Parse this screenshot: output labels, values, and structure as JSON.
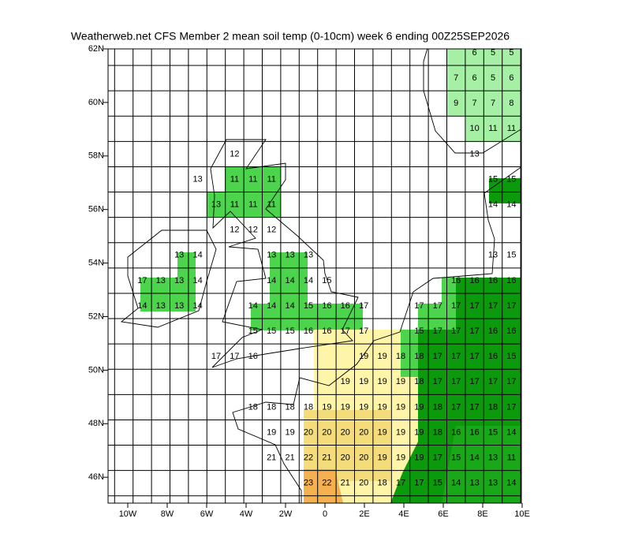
{
  "title": "Weatherweb.net CFS Member 2 mean soil temp (0-10cm) week 6 ending 00Z25SEP2026",
  "x_axis_labels": [
    "10W",
    "8W",
    "6W",
    "4W",
    "2W",
    "0",
    "2E",
    "4E",
    "6E",
    "8E",
    "10E"
  ],
  "y_axis_labels": [
    "62N",
    "60N",
    "58N",
    "56N",
    "54N",
    "52N",
    "50N",
    "48N",
    "46N"
  ],
  "grid_values": [
    [
      null,
      null,
      null,
      null,
      null,
      null,
      null,
      null,
      null,
      null,
      null,
      null,
      null,
      null,
      null,
      null,
      null,
      null,
      null,
      6,
      5,
      5
    ],
    [
      null,
      null,
      null,
      null,
      null,
      null,
      null,
      null,
      null,
      null,
      null,
      null,
      null,
      null,
      null,
      null,
      null,
      null,
      7,
      6,
      5,
      6
    ],
    [
      null,
      null,
      null,
      null,
      null,
      null,
      null,
      null,
      null,
      null,
      null,
      null,
      null,
      null,
      null,
      null,
      null,
      null,
      9,
      7,
      7,
      8
    ],
    [
      null,
      null,
      null,
      null,
      null,
      null,
      null,
      null,
      null,
      null,
      null,
      null,
      null,
      null,
      null,
      null,
      null,
      null,
      null,
      10,
      11,
      11
    ],
    [
      null,
      null,
      null,
      null,
      null,
      null,
      12,
      null,
      null,
      null,
      null,
      null,
      null,
      null,
      null,
      null,
      null,
      null,
      null,
      13,
      null,
      null
    ],
    [
      null,
      null,
      null,
      null,
      13,
      null,
      11,
      11,
      11,
      null,
      null,
      null,
      null,
      null,
      null,
      null,
      null,
      null,
      null,
      null,
      15,
      15
    ],
    [
      null,
      null,
      null,
      null,
      null,
      13,
      11,
      11,
      11,
      null,
      null,
      null,
      null,
      null,
      null,
      null,
      null,
      null,
      null,
      null,
      14,
      14
    ],
    [
      null,
      null,
      null,
      null,
      null,
      null,
      12,
      12,
      12,
      null,
      null,
      null,
      null,
      null,
      null,
      null,
      null,
      null,
      null,
      null,
      null,
      null
    ],
    [
      null,
      null,
      null,
      13,
      14,
      null,
      null,
      null,
      13,
      13,
      13,
      null,
      null,
      null,
      null,
      null,
      null,
      null,
      null,
      null,
      13,
      15
    ],
    [
      null,
      17,
      13,
      13,
      14,
      null,
      null,
      null,
      14,
      14,
      14,
      15,
      null,
      null,
      null,
      null,
      null,
      null,
      16,
      16,
      16,
      16
    ],
    [
      null,
      14,
      13,
      13,
      14,
      null,
      null,
      14,
      14,
      14,
      15,
      16,
      16,
      17,
      null,
      null,
      17,
      17,
      17,
      17,
      17,
      17
    ],
    [
      null,
      null,
      null,
      null,
      null,
      null,
      null,
      15,
      15,
      15,
      16,
      16,
      17,
      17,
      null,
      null,
      15,
      17,
      17,
      17,
      16,
      16
    ],
    [
      null,
      null,
      null,
      null,
      null,
      17,
      17,
      16,
      null,
      null,
      null,
      null,
      null,
      19,
      19,
      18,
      18,
      17,
      17,
      17,
      16,
      15
    ],
    [
      null,
      null,
      null,
      null,
      null,
      null,
      null,
      null,
      null,
      null,
      null,
      null,
      19,
      19,
      19,
      19,
      18,
      17,
      17,
      17,
      17,
      17
    ],
    [
      null,
      null,
      null,
      null,
      null,
      null,
      null,
      18,
      18,
      18,
      18,
      19,
      19,
      19,
      19,
      19,
      19,
      18,
      17,
      17,
      18,
      17
    ],
    [
      null,
      null,
      null,
      null,
      null,
      null,
      null,
      null,
      19,
      19,
      20,
      20,
      20,
      20,
      19,
      19,
      19,
      18,
      16,
      16,
      15,
      14
    ],
    [
      null,
      null,
      null,
      null,
      null,
      null,
      null,
      null,
      21,
      21,
      22,
      21,
      20,
      20,
      19,
      19,
      19,
      17,
      15,
      14,
      13,
      11
    ],
    [
      null,
      null,
      null,
      null,
      null,
      null,
      null,
      null,
      null,
      null,
      23,
      22,
      21,
      20,
      18,
      17,
      17,
      15,
      14,
      13,
      13,
      14
    ]
  ]
}
